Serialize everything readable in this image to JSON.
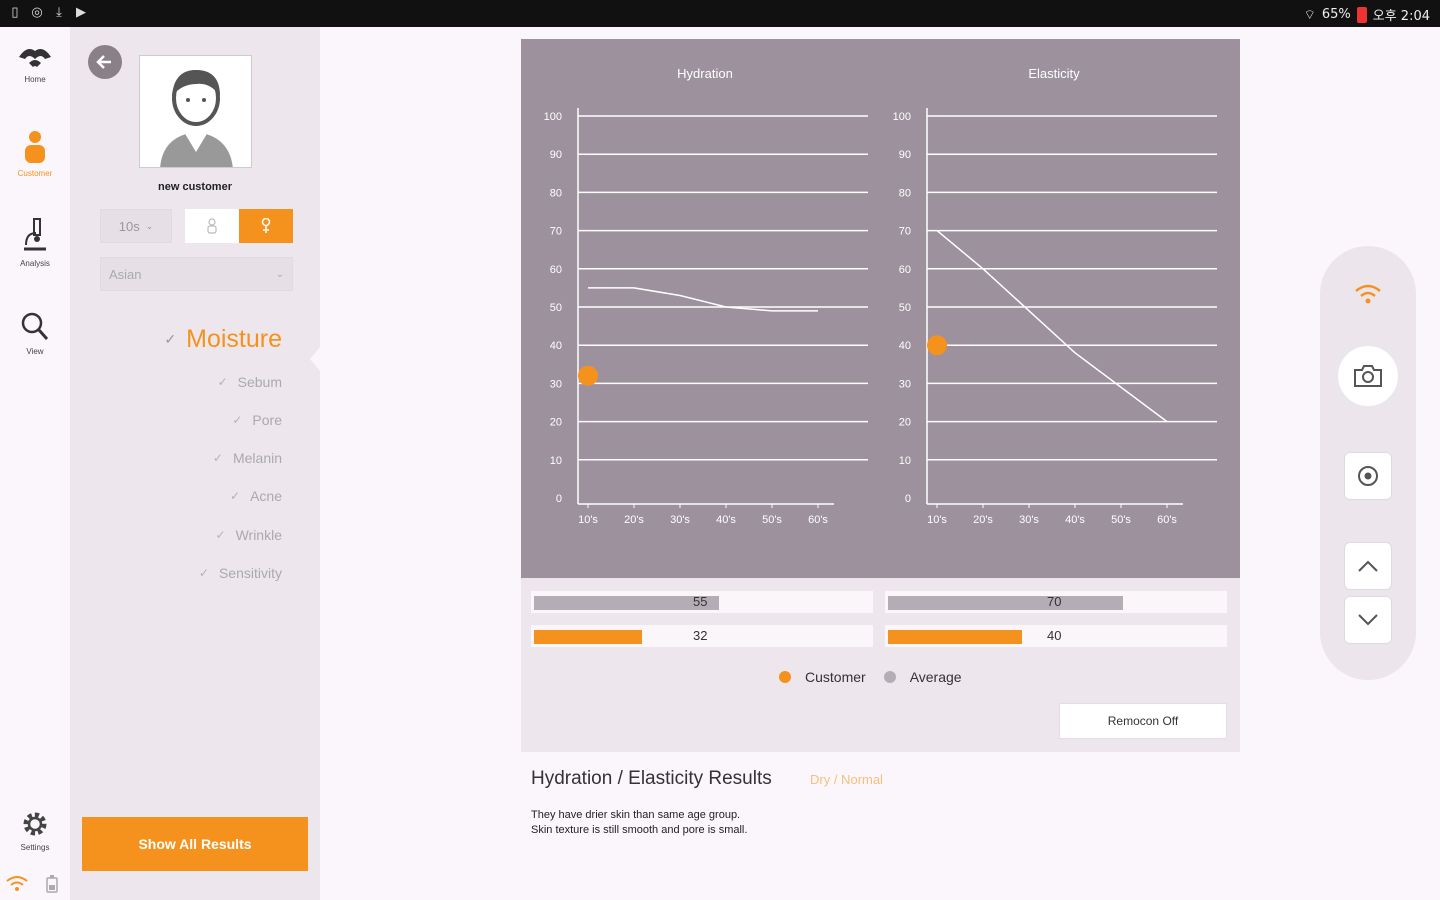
{
  "status_bar": {
    "battery": "65%",
    "time": "오후 2:04",
    "battery_color": "#e33333"
  },
  "nav": {
    "items": [
      {
        "label": "Home",
        "icon": "home-icon"
      },
      {
        "label": "Customer",
        "icon": "person-icon"
      },
      {
        "label": "Analysis",
        "icon": "microscope-icon"
      },
      {
        "label": "View",
        "icon": "search-icon"
      }
    ],
    "settings_label": "Settings"
  },
  "customer": {
    "name": "new customer",
    "age": "10s",
    "ethnicity": "Asian"
  },
  "menu": {
    "items": [
      "Moisture",
      "Sebum",
      "Pore",
      "Melanin",
      "Acne",
      "Wrinkle",
      "Sensitivity"
    ],
    "active": "Moisture"
  },
  "show_all_label": "Show All Results",
  "colors": {
    "accent": "#f5921e",
    "chart_bg": "#9c919c",
    "average": "#b5adb5"
  },
  "chart_data": [
    {
      "type": "line",
      "title": "Hydration",
      "categories": [
        "10's",
        "20's",
        "30's",
        "40's",
        "50's",
        "60's"
      ],
      "series": [
        {
          "name": "Average",
          "values": [
            55,
            55,
            53,
            50,
            49,
            49
          ]
        }
      ],
      "customer_point": {
        "category": "10's",
        "value": 32
      },
      "ylim": [
        0,
        100
      ],
      "yticks": [
        0,
        10,
        20,
        30,
        40,
        50,
        60,
        70,
        80,
        90,
        100
      ],
      "grid": true
    },
    {
      "type": "line",
      "title": "Elasticity",
      "categories": [
        "10's",
        "20's",
        "30's",
        "40's",
        "50's",
        "60's"
      ],
      "series": [
        {
          "name": "Average",
          "values": [
            70,
            60,
            49,
            38,
            29,
            20
          ]
        }
      ],
      "customer_point": {
        "category": "10's",
        "value": 40
      },
      "ylim": [
        0,
        100
      ],
      "yticks": [
        0,
        10,
        20,
        30,
        40,
        50,
        60,
        70,
        80,
        90,
        100
      ],
      "grid": true
    }
  ],
  "bars": {
    "hydration": {
      "average": 55,
      "customer": 32
    },
    "elasticity": {
      "average": 70,
      "customer": 40
    }
  },
  "legend": {
    "customer": "Customer",
    "average": "Average"
  },
  "remocon_label": "Remocon Off",
  "result": {
    "title": "Hydration / Elasticity Results",
    "tag": "Dry / Normal",
    "desc_line1": "They have drier skin than same age group.",
    "desc_line2": "Skin texture is still smooth and pore is small."
  }
}
